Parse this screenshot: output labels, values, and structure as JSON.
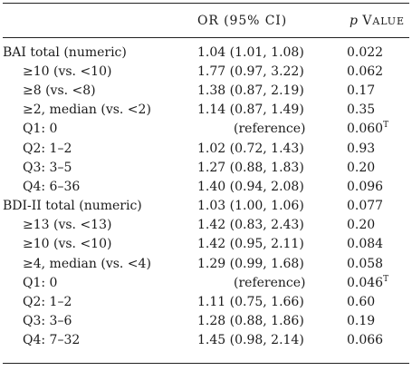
{
  "header": {
    "col_label": "",
    "col_or": "OR (95% CI)",
    "col_p_italic": "p",
    "col_p_first": "V",
    "col_p_rest": "ALUE"
  },
  "rows": [
    {
      "label": "BAI total (numeric)",
      "or": "1.04 (1.01, 1.08)",
      "p": "0.022",
      "sup": "",
      "indent": false
    },
    {
      "label": "≥10 (vs. <10)",
      "or": "1.77 (0.97, 3.22)",
      "p": "0.062",
      "sup": "",
      "indent": true
    },
    {
      "label": "≥8 (vs. <8)",
      "or": "1.38 (0.87, 2.19)",
      "p": "0.17",
      "sup": "",
      "indent": true
    },
    {
      "label": "≥2, median (vs. <2)",
      "or": "1.14 (0.87, 1.49)",
      "p": "0.35",
      "sup": "",
      "indent": true
    },
    {
      "label": "Q1: 0",
      "or": "(reference)",
      "p": "0.060",
      "sup": "T",
      "indent": true
    },
    {
      "label": "Q2: 1–2",
      "or": "1.02 (0.72, 1.43)",
      "p": "0.93",
      "sup": "",
      "indent": true
    },
    {
      "label": "Q3: 3–5",
      "or": "1.27 (0.88, 1.83)",
      "p": "0.20",
      "sup": "",
      "indent": true
    },
    {
      "label": "Q4: 6–36",
      "or": "1.40 (0.94, 2.08)",
      "p": "0.096",
      "sup": "",
      "indent": true
    },
    {
      "label": "BDI-II total (numeric)",
      "or": "1.03 (1.00, 1.06)",
      "p": "0.077",
      "sup": "",
      "indent": false
    },
    {
      "label": "≥13 (vs. <13)",
      "or": "1.42 (0.83, 2.43)",
      "p": "0.20",
      "sup": "",
      "indent": true
    },
    {
      "label": "≥10 (vs. <10)",
      "or": "1.42 (0.95, 2.11)",
      "p": "0.084",
      "sup": "",
      "indent": true
    },
    {
      "label": "≥4, median (vs. <4)",
      "or": "1.29 (0.99, 1.68)",
      "p": "0.058",
      "sup": "",
      "indent": true
    },
    {
      "label": "Q1: 0",
      "or": "(reference)",
      "p": "0.046",
      "sup": "T",
      "indent": true
    },
    {
      "label": "Q2: 1–2",
      "or": "1.11 (0.75, 1.66)",
      "p": "0.60",
      "sup": "",
      "indent": true
    },
    {
      "label": "Q3: 3–6",
      "or": "1.28 (0.88, 1.86)",
      "p": "0.19",
      "sup": "",
      "indent": true
    },
    {
      "label": "Q4: 7–32",
      "or": "1.45 (0.98, 2.14)",
      "p": "0.066",
      "sup": "",
      "indent": true
    }
  ]
}
